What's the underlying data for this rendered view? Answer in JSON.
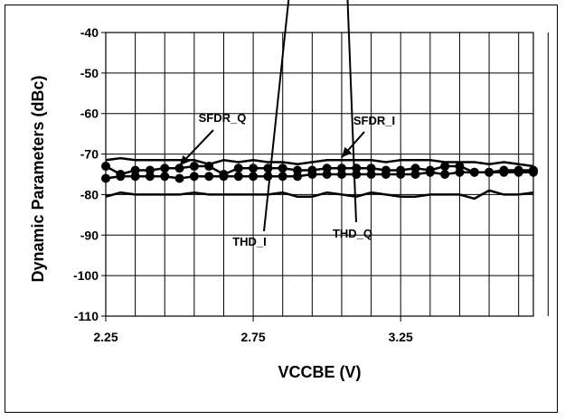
{
  "chart_data": {
    "type": "line",
    "xlabel": "VCCBE (V)",
    "ylabel": "Dynamic Parameters (dBc)",
    "xlim": [
      2.25,
      3.7
    ],
    "ylim": [
      -110,
      -40
    ],
    "x_ticks": [
      2.25,
      2.75,
      3.25
    ],
    "x_tick_labels": [
      "2.25",
      "2.75",
      "3.25"
    ],
    "y_ticks": [
      -40,
      -50,
      -60,
      -70,
      -80,
      -90,
      -100,
      -110
    ],
    "y_tick_labels": [
      "-40",
      "-50",
      "-60",
      "-70",
      "-80",
      "-90",
      "-100",
      "-110"
    ],
    "grid": true,
    "x": [
      2.25,
      2.3,
      2.35,
      2.4,
      2.45,
      2.5,
      2.55,
      2.6,
      2.65,
      2.7,
      2.75,
      2.8,
      2.85,
      2.9,
      2.95,
      3.0,
      3.05,
      3.1,
      3.15,
      3.2,
      3.25,
      3.3,
      3.35,
      3.4,
      3.45,
      3.5,
      3.55,
      3.6,
      3.65,
      3.7
    ],
    "series": [
      {
        "name": "SFDR_I",
        "marker": false,
        "values": [
          -71.5,
          -71,
          -71.5,
          -71.5,
          -71.5,
          -71.5,
          -71.5,
          -72.5,
          -71.5,
          -72,
          -71.5,
          -72,
          -72,
          -72.5,
          -72,
          -71.5,
          -71.5,
          -71.5,
          -71.5,
          -72,
          -71.5,
          -71.5,
          -71.5,
          -72,
          -72,
          -72,
          -72.5,
          -72,
          -72.5,
          -73
        ]
      },
      {
        "name": "SFDR_Q",
        "marker": true,
        "values": [
          -73,
          -75,
          -74,
          -74,
          -73.5,
          -73.5,
          -73,
          -73,
          -75,
          -73.5,
          -73.5,
          -73.5,
          -73.5,
          -74,
          -74,
          -73.5,
          -73.5,
          -73.5,
          -73.5,
          -74,
          -74,
          -73.5,
          -74,
          -73,
          -73,
          -74.5,
          -74.5,
          -74,
          -74,
          -74
        ]
      },
      {
        "name": "THD_Q",
        "marker": true,
        "values": [
          -76,
          -75.5,
          -75.5,
          -75.5,
          -75.5,
          -76,
          -75.5,
          -75.5,
          -75.5,
          -75.5,
          -75.5,
          -75.5,
          -75.5,
          -75.5,
          -75,
          -75,
          -75,
          -75,
          -75,
          -75,
          -75,
          -75,
          -74.5,
          -75,
          -74.5,
          -74.5,
          -74.5,
          -74.5,
          -74.5,
          -74.5
        ]
      },
      {
        "name": "THD_I",
        "marker": false,
        "values": [
          -80.5,
          -79.5,
          -80,
          -80,
          -80,
          -80,
          -79.5,
          -80,
          -80,
          -80,
          -80,
          -80,
          -79.5,
          -80.5,
          -80.5,
          -79.5,
          -80,
          -80.5,
          -79.5,
          -80,
          -80.5,
          -80.5,
          -80,
          -80,
          -80,
          -81,
          -79,
          -80,
          -80,
          -79.5
        ]
      }
    ],
    "annotations": [
      {
        "text": "SFDR_Q",
        "points_to": "SFDR_Q",
        "at_x": 2.5
      },
      {
        "text": "SFDR_I",
        "points_to": "SFDR_I",
        "at_x": 3.05
      },
      {
        "text": "THD_I",
        "points_to": "THD_I",
        "at_x": 2.87
      },
      {
        "text": "THD_Q",
        "points_to": "THD_Q",
        "at_x": 3.07
      }
    ]
  }
}
